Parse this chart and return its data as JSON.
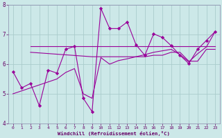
{
  "xlabel": "Windchill (Refroidissement éolien,°C)",
  "xlim": [
    -0.5,
    23.5
  ],
  "ylim": [
    4,
    8
  ],
  "yticks": [
    4,
    5,
    6,
    7,
    8
  ],
  "xticks": [
    0,
    1,
    2,
    3,
    4,
    5,
    6,
    7,
    8,
    9,
    10,
    11,
    12,
    13,
    14,
    15,
    16,
    17,
    18,
    19,
    20,
    21,
    22,
    23
  ],
  "background_color": "#cce8e8",
  "grid_color": "#aacccc",
  "line_color": "#990099",
  "marker_color": "#990099",
  "spine_color": "#8888aa",
  "tick_color": "#660066",
  "xlabel_color": "#660066",
  "line1_x": [
    0,
    1,
    2,
    3,
    4,
    5,
    6,
    7,
    8,
    9,
    10,
    11,
    12,
    13,
    14,
    15,
    16,
    17,
    18,
    19,
    20,
    21,
    22,
    23
  ],
  "line1_y": [
    5.75,
    5.2,
    5.35,
    4.6,
    5.8,
    5.7,
    6.5,
    6.6,
    4.85,
    4.4,
    7.88,
    7.2,
    7.2,
    7.42,
    6.65,
    6.3,
    7.02,
    6.9,
    6.62,
    6.3,
    6.02,
    6.5,
    6.8,
    7.1
  ],
  "line2_x": [
    2,
    3,
    4,
    5,
    6,
    7,
    8,
    9,
    10,
    11,
    12,
    13,
    14,
    15,
    16,
    17,
    18,
    19,
    20,
    21,
    22,
    23
  ],
  "line2_y": [
    6.6,
    6.6,
    6.6,
    6.6,
    6.6,
    6.6,
    6.6,
    6.6,
    6.6,
    6.6,
    6.6,
    6.6,
    6.6,
    6.6,
    6.6,
    6.6,
    6.6,
    6.6,
    6.6,
    6.6,
    6.6,
    6.6
  ],
  "line3_x": [
    2,
    9,
    10,
    11,
    12,
    13,
    14,
    15,
    16,
    17,
    18,
    19,
    20,
    21,
    22,
    23
  ],
  "line3_y": [
    6.4,
    6.25,
    6.25,
    6.25,
    6.25,
    6.25,
    6.25,
    6.25,
    6.3,
    6.3,
    6.4,
    6.4,
    6.1,
    6.1,
    6.5,
    6.5
  ],
  "line4_x": [
    0,
    2,
    5,
    6,
    7,
    8,
    9,
    10,
    11,
    12,
    13,
    14,
    15,
    16,
    17,
    18,
    19,
    20,
    21,
    22,
    23
  ],
  "line4_y": [
    5.0,
    5.2,
    5.5,
    5.72,
    5.85,
    5.0,
    4.85,
    6.22,
    6.0,
    6.12,
    6.18,
    6.25,
    6.32,
    6.4,
    6.45,
    6.5,
    6.32,
    6.08,
    6.35,
    6.58,
    7.1
  ]
}
